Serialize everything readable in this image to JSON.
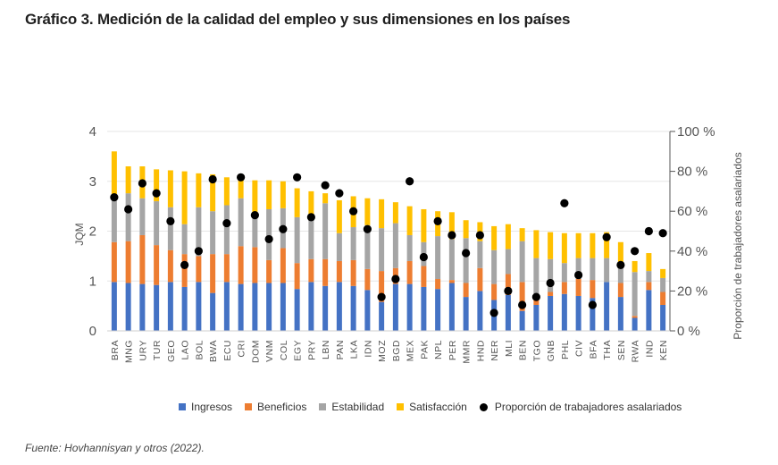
{
  "title": "Gráfico 3. Medición de la calidad del empleo y sus dimensiones en los países",
  "source": "Fuente: Hovhannisyan y otros (2022).",
  "colors": {
    "ingresos": "#4472C4",
    "beneficios": "#ED7D31",
    "estabilidad": "#A5A5A5",
    "satisfaccion": "#FFC000",
    "proporcion": "#000000"
  },
  "chart_data": {
    "type": "bar",
    "stacked": true,
    "ylabel": "JQM",
    "y2label": "Proporción de trabajadores asalariados",
    "ylim": [
      0,
      4
    ],
    "y2lim": [
      0,
      100
    ],
    "y_ticks": [
      "0",
      "1",
      "2",
      "3",
      "4"
    ],
    "y2_ticks": [
      "0 %",
      "20 %",
      "40 %",
      "60 %",
      "80 %",
      "100 %"
    ],
    "legend_position": "bottom",
    "categories": [
      "BRA",
      "MNG",
      "URY",
      "TUR",
      "GEO",
      "LAO",
      "BOL",
      "BWA",
      "ECU",
      "CRI",
      "DOM",
      "VNM",
      "COL",
      "EGY",
      "PRY",
      "LBN",
      "PAN",
      "LKA",
      "IDN",
      "MOZ",
      "BGD",
      "MEX",
      "PAK",
      "NPL",
      "PER",
      "MMR",
      "HND",
      "NER",
      "MLI",
      "BEN",
      "TGO",
      "GNB",
      "PHL",
      "CIV",
      "BFA",
      "THA",
      "SEN",
      "RWA",
      "IND",
      "KEN"
    ],
    "series": [
      {
        "name": "Ingresos",
        "axis": "left",
        "values": [
          0.98,
          0.96,
          0.94,
          0.92,
          0.98,
          0.88,
          0.98,
          0.76,
          0.98,
          0.94,
          0.96,
          0.96,
          0.96,
          0.84,
          0.98,
          0.9,
          0.98,
          0.9,
          0.82,
          0.58,
          0.94,
          0.94,
          0.88,
          0.84,
          0.96,
          0.68,
          0.8,
          0.62,
          0.72,
          0.4,
          0.52,
          0.7,
          0.74,
          0.7,
          0.66,
          0.98,
          0.68,
          0.26,
          0.82,
          0.52
        ]
      },
      {
        "name": "Beneficios",
        "axis": "left",
        "values": [
          0.8,
          0.84,
          0.98,
          0.8,
          0.64,
          0.66,
          0.52,
          0.78,
          0.56,
          0.76,
          0.72,
          0.46,
          0.7,
          0.52,
          0.46,
          0.54,
          0.42,
          0.52,
          0.42,
          0.62,
          0.32,
          0.46,
          0.42,
          0.2,
          0.06,
          0.28,
          0.46,
          0.32,
          0.42,
          0.58,
          0.2,
          0.08,
          0.24,
          0.34,
          0.36,
          0.0,
          0.28,
          0.04,
          0.16,
          0.26
        ]
      },
      {
        "name": "Estabilidad",
        "axis": "left",
        "values": [
          0.9,
          0.96,
          0.74,
          0.88,
          0.86,
          0.6,
          0.98,
          0.86,
          0.98,
          0.96,
          0.58,
          1.02,
          0.8,
          0.92,
          0.78,
          1.12,
          0.56,
          0.66,
          0.88,
          0.86,
          0.9,
          0.52,
          0.48,
          0.86,
          0.82,
          0.9,
          0.54,
          0.68,
          0.5,
          0.82,
          0.74,
          0.66,
          0.38,
          0.42,
          0.44,
          0.48,
          0.3,
          0.88,
          0.22,
          0.28
        ]
      },
      {
        "name": "Satisfacción",
        "axis": "left",
        "values": [
          0.92,
          0.54,
          0.64,
          0.64,
          0.74,
          1.06,
          0.68,
          0.74,
          0.56,
          0.46,
          0.76,
          0.58,
          0.54,
          0.58,
          0.58,
          0.2,
          0.66,
          0.62,
          0.54,
          0.58,
          0.42,
          0.58,
          0.66,
          0.5,
          0.54,
          0.36,
          0.38,
          0.48,
          0.5,
          0.26,
          0.56,
          0.54,
          0.6,
          0.5,
          0.5,
          0.52,
          0.52,
          0.22,
          0.36,
          0.18
        ]
      },
      {
        "name": "Proporción de trabajadores asalariados",
        "type": "scatter",
        "axis": "right",
        "values": [
          67,
          61,
          74,
          69,
          55,
          33,
          40,
          76,
          54,
          77,
          58,
          46,
          51,
          77,
          57,
          73,
          69,
          60,
          51,
          17,
          26,
          75,
          37,
          55,
          48,
          39,
          48,
          9,
          20,
          13,
          17,
          24,
          64,
          28,
          13,
          47,
          33,
          40,
          50,
          49
        ]
      }
    ]
  }
}
